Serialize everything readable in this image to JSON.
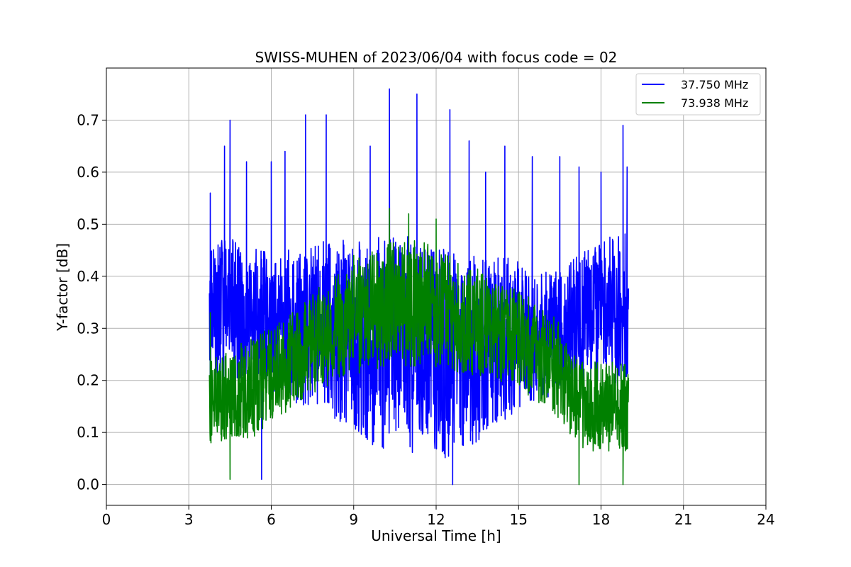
{
  "chart_data": {
    "type": "line",
    "title": "SWISS-MUHEN of 2023/06/04 with focus code = 02",
    "xlabel": "Universal Time [h]",
    "ylabel": "Y-factor [dB]",
    "xlim": [
      0,
      24
    ],
    "ylim": [
      -0.04,
      0.8
    ],
    "xticks": [
      0,
      3,
      6,
      9,
      12,
      15,
      18,
      21,
      24
    ],
    "yticks": [
      0.0,
      0.1,
      0.2,
      0.3,
      0.4,
      0.5,
      0.6,
      0.7
    ],
    "ytick_labels": [
      "0.0",
      "0.1",
      "0.2",
      "0.3",
      "0.4",
      "0.5",
      "0.6",
      "0.7"
    ],
    "grid": true,
    "legend_position": "top-right",
    "series": [
      {
        "name": "37.750 MHz",
        "color": "#0000ff",
        "x": [
          3.75,
          4.0,
          4.5,
          5.0,
          5.5,
          6.0,
          6.5,
          7.0,
          7.5,
          8.0,
          8.5,
          9.0,
          9.5,
          10.0,
          10.5,
          11.0,
          11.5,
          12.0,
          12.5,
          13.0,
          13.5,
          14.0,
          14.5,
          15.0,
          15.5,
          16.0,
          16.5,
          17.0,
          17.5,
          18.0,
          18.5,
          19.0
        ],
        "y_mean": [
          0.32,
          0.33,
          0.34,
          0.33,
          0.32,
          0.31,
          0.31,
          0.3,
          0.3,
          0.3,
          0.29,
          0.29,
          0.28,
          0.27,
          0.27,
          0.27,
          0.26,
          0.25,
          0.25,
          0.26,
          0.26,
          0.27,
          0.28,
          0.29,
          0.29,
          0.29,
          0.3,
          0.31,
          0.32,
          0.33,
          0.33,
          0.33
        ],
        "y_amplitude": [
          0.16,
          0.15,
          0.14,
          0.14,
          0.14,
          0.14,
          0.15,
          0.16,
          0.17,
          0.18,
          0.19,
          0.2,
          0.21,
          0.22,
          0.22,
          0.22,
          0.22,
          0.22,
          0.21,
          0.2,
          0.19,
          0.18,
          0.17,
          0.15,
          0.14,
          0.13,
          0.13,
          0.13,
          0.14,
          0.15,
          0.16,
          0.16
        ],
        "spikes": [
          [
            3.78,
            0.56
          ],
          [
            4.3,
            0.65
          ],
          [
            4.5,
            0.7
          ],
          [
            5.1,
            0.62
          ],
          [
            5.65,
            0.01
          ],
          [
            6.0,
            0.62
          ],
          [
            6.5,
            0.64
          ],
          [
            7.25,
            0.71
          ],
          [
            8.0,
            0.71
          ],
          [
            9.6,
            0.65
          ],
          [
            10.3,
            0.76
          ],
          [
            11.3,
            0.75
          ],
          [
            12.5,
            0.72
          ],
          [
            12.6,
            0.0
          ],
          [
            13.2,
            0.66
          ],
          [
            13.8,
            0.6
          ],
          [
            14.5,
            0.65
          ],
          [
            15.5,
            0.63
          ],
          [
            16.5,
            0.63
          ],
          [
            17.2,
            0.61
          ],
          [
            18.0,
            0.6
          ],
          [
            18.8,
            0.69
          ],
          [
            18.95,
            0.61
          ]
        ]
      },
      {
        "name": "73.938 MHz",
        "color": "#008000",
        "x": [
          3.75,
          4.0,
          4.5,
          5.0,
          5.5,
          6.0,
          6.5,
          7.0,
          7.5,
          8.0,
          8.5,
          9.0,
          9.5,
          10.0,
          10.5,
          11.0,
          11.5,
          12.0,
          12.5,
          13.0,
          13.5,
          14.0,
          14.5,
          15.0,
          15.5,
          16.0,
          16.5,
          17.0,
          17.5,
          18.0,
          18.5,
          19.0
        ],
        "y_mean": [
          0.15,
          0.16,
          0.17,
          0.18,
          0.19,
          0.21,
          0.23,
          0.25,
          0.27,
          0.29,
          0.3,
          0.32,
          0.33,
          0.34,
          0.35,
          0.35,
          0.35,
          0.34,
          0.33,
          0.32,
          0.31,
          0.3,
          0.29,
          0.28,
          0.26,
          0.24,
          0.22,
          0.17,
          0.15,
          0.15,
          0.15,
          0.15
        ],
        "y_amplitude": [
          0.09,
          0.09,
          0.09,
          0.1,
          0.1,
          0.1,
          0.1,
          0.1,
          0.1,
          0.11,
          0.11,
          0.12,
          0.12,
          0.13,
          0.13,
          0.13,
          0.13,
          0.12,
          0.12,
          0.11,
          0.11,
          0.1,
          0.1,
          0.1,
          0.1,
          0.1,
          0.1,
          0.09,
          0.09,
          0.09,
          0.09,
          0.09
        ],
        "spikes": [
          [
            3.78,
            0.33
          ],
          [
            4.5,
            0.01
          ],
          [
            10.3,
            0.53
          ],
          [
            11.0,
            0.52
          ],
          [
            12.0,
            0.51
          ],
          [
            17.2,
            0.0
          ],
          [
            18.8,
            0.0
          ],
          [
            9.0,
            0.44
          ]
        ]
      }
    ]
  }
}
